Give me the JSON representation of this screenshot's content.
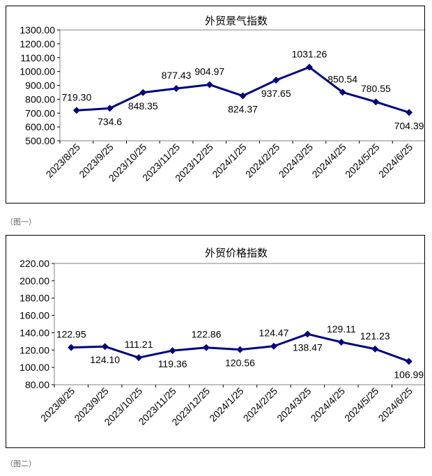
{
  "captions": [
    "（图一）",
    "（图二）"
  ],
  "chart_data": [
    {
      "type": "line",
      "title": "外贸景气指数",
      "categories": [
        "2023/8/25",
        "2023/9/25",
        "2023/10/25",
        "2023/11/25",
        "2023/12/25",
        "2024/1/25",
        "2024/2/25",
        "2024/3/25",
        "2024/4/25",
        "2024/5/25",
        "2024/6/25"
      ],
      "values": [
        719.3,
        734.6,
        848.35,
        877.43,
        904.97,
        824.37,
        937.65,
        1031.26,
        850.54,
        780.55,
        704.39
      ],
      "data_labels": [
        "719.30",
        "734.6",
        "848.35",
        "877.43",
        "904.97",
        "824.37",
        "937.65",
        "1031.26",
        "850.54",
        "780.55",
        "704.39"
      ],
      "label_positions": [
        "above",
        "below",
        "below",
        "above",
        "above",
        "below",
        "below",
        "above",
        "above",
        "above",
        "below"
      ],
      "ylim": [
        500,
        1300
      ],
      "yticks": [
        "500.00",
        "600.00",
        "700.00",
        "800.00",
        "900.00",
        "1000.00",
        "1100.00",
        "1200.00",
        "1300.00"
      ],
      "xlabel": "",
      "ylabel": "",
      "color": "#000080",
      "legend": "none"
    },
    {
      "type": "line",
      "title": "外贸价格指数",
      "categories": [
        "2023/8/25",
        "2023/9/25",
        "2023/10/25",
        "2023/11/25",
        "2023/12/25",
        "2024/1/25",
        "2024/2/25",
        "2024/3/25",
        "2024/4/25",
        "2024/5/25",
        "2024/6/25"
      ],
      "values": [
        122.95,
        124.1,
        111.21,
        119.36,
        122.86,
        120.56,
        124.47,
        138.47,
        129.11,
        121.23,
        106.99
      ],
      "data_labels": [
        "122.95",
        "124.10",
        "111.21",
        "119.36",
        "122.86",
        "120.56",
        "124.47",
        "138.47",
        "129.11",
        "121.23",
        "106.99"
      ],
      "label_positions": [
        "above",
        "below",
        "above",
        "below",
        "above",
        "below",
        "above",
        "below",
        "above",
        "above",
        "below"
      ],
      "ylim": [
        80,
        220
      ],
      "yticks": [
        "80.00",
        "100.00",
        "120.00",
        "140.00",
        "160.00",
        "180.00",
        "200.00",
        "220.00"
      ],
      "xlabel": "",
      "ylabel": "",
      "color": "#000080",
      "legend": "none"
    }
  ]
}
